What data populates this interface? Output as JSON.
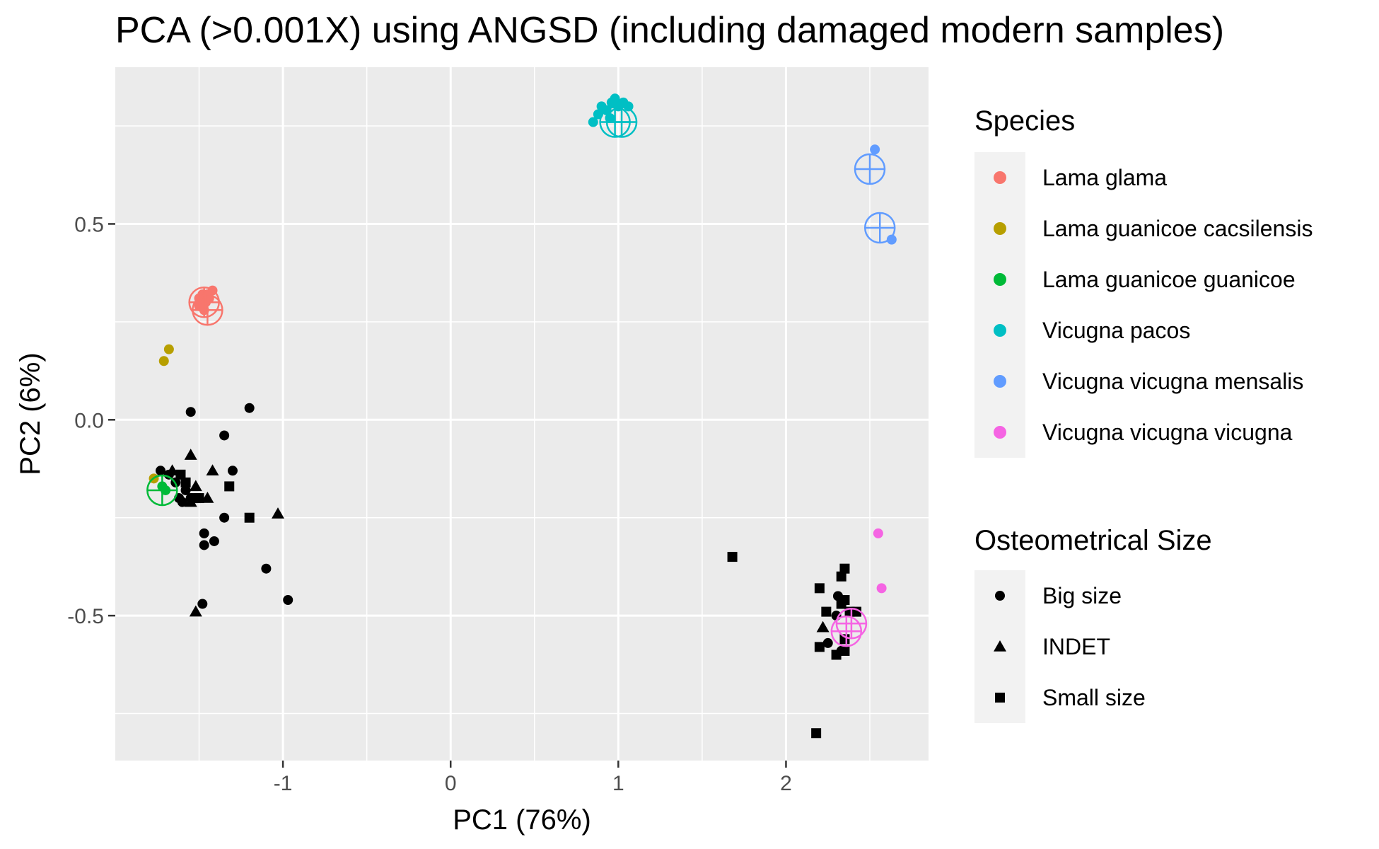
{
  "chart_data": {
    "type": "scatter",
    "title": "PCA (>0.001X) using ANGSD (including damaged modern samples)",
    "xlabel": "PC1 (76%)",
    "ylabel": "PC2 (6%)",
    "xlim": [
      -2.0,
      2.85
    ],
    "ylim": [
      -0.87,
      0.9
    ],
    "xticks": [
      -1,
      0,
      1,
      2
    ],
    "xtick_labels": [
      "-1",
      "0",
      "1",
      "2"
    ],
    "yticks": [
      -0.5,
      0.0,
      0.5
    ],
    "ytick_labels": [
      "-0.5",
      "0.0",
      "0.5"
    ],
    "grid": true,
    "background": "#ebebeb",
    "legends": [
      {
        "title": "Species",
        "type": "color",
        "items": [
          {
            "label": "Lama glama",
            "color": "#F8766D"
          },
          {
            "label": "Lama guanicoe cacsilensis",
            "color": "#B79F00"
          },
          {
            "label": "Lama guanicoe guanicoe",
            "color": "#00BA38"
          },
          {
            "label": "Vicugna pacos",
            "color": "#00BFC4"
          },
          {
            "label": "Vicugna vicugna mensalis",
            "color": "#619CFF"
          },
          {
            "label": "Vicugna vicugna vicugna",
            "color": "#F564E3"
          }
        ]
      },
      {
        "title": "Osteometrical Size",
        "type": "shape",
        "items": [
          {
            "label": "Big size",
            "shape": "circle"
          },
          {
            "label": "INDET",
            "shape": "triangle"
          },
          {
            "label": "Small size",
            "shape": "square"
          }
        ]
      }
    ],
    "modern_samples": [
      {
        "species": "Lama glama",
        "color": "#F8766D",
        "points": [
          [
            -1.5,
            0.31
          ],
          [
            -1.48,
            0.32
          ],
          [
            -1.45,
            0.32
          ],
          [
            -1.42,
            0.33
          ],
          [
            -1.5,
            0.29
          ],
          [
            -1.46,
            0.3
          ],
          [
            -1.44,
            0.31
          ],
          [
            -1.47,
            0.28
          ]
        ]
      },
      {
        "species": "Lama guanicoe cacsilensis",
        "color": "#B79F00",
        "points": [
          [
            -1.68,
            0.18
          ],
          [
            -1.71,
            0.15
          ],
          [
            -1.77,
            -0.15
          ]
        ]
      },
      {
        "species": "Lama guanicoe guanicoe",
        "color": "#00BA38",
        "points": [
          [
            -1.72,
            -0.17
          ],
          [
            -1.7,
            -0.18
          ]
        ]
      },
      {
        "species": "Vicugna pacos",
        "color": "#00BFC4",
        "points": [
          [
            0.85,
            0.76
          ],
          [
            0.88,
            0.78
          ],
          [
            0.9,
            0.8
          ],
          [
            0.93,
            0.79
          ],
          [
            0.96,
            0.81
          ],
          [
            0.98,
            0.82
          ],
          [
            1.0,
            0.8
          ],
          [
            1.03,
            0.81
          ],
          [
            1.06,
            0.8
          ],
          [
            0.95,
            0.77
          ]
        ]
      },
      {
        "species": "Vicugna vicugna mensalis",
        "color": "#619CFF",
        "points": [
          [
            2.53,
            0.69
          ],
          [
            2.63,
            0.46
          ]
        ]
      },
      {
        "species": "Vicugna vicugna vicugna",
        "color": "#F564E3",
        "points": [
          [
            2.55,
            -0.29
          ],
          [
            2.57,
            -0.43
          ]
        ]
      }
    ],
    "damaged_modern_samples": [
      {
        "species": "Lama glama",
        "color": "#F8766D",
        "points": [
          [
            -1.47,
            0.3
          ],
          [
            -1.45,
            0.28
          ]
        ]
      },
      {
        "species": "Lama guanicoe guanicoe",
        "color": "#00BA38",
        "points": [
          [
            -1.72,
            -0.18
          ]
        ]
      },
      {
        "species": "Vicugna pacos",
        "color": "#00BFC4",
        "points": [
          [
            0.98,
            0.76
          ],
          [
            1.02,
            0.76
          ]
        ]
      },
      {
        "species": "Vicugna vicugna mensalis",
        "color": "#619CFF",
        "points": [
          [
            2.5,
            0.64
          ],
          [
            2.56,
            0.49
          ]
        ]
      },
      {
        "species": "Vicugna vicugna vicugna",
        "color": "#F564E3",
        "points": [
          [
            2.36,
            -0.54
          ],
          [
            2.39,
            -0.52
          ]
        ]
      }
    ],
    "archaeological_samples": {
      "color": "#000000",
      "big_size": [
        [
          -1.73,
          -0.13
        ],
        [
          -1.68,
          -0.14
        ],
        [
          -1.64,
          -0.16
        ],
        [
          -1.62,
          -0.2
        ],
        [
          -1.6,
          -0.21
        ],
        [
          -1.58,
          -0.18
        ],
        [
          -1.55,
          -0.2
        ],
        [
          -1.5,
          -0.2
        ],
        [
          -1.55,
          0.02
        ],
        [
          -1.2,
          0.03
        ],
        [
          -1.35,
          -0.04
        ],
        [
          -1.3,
          -0.13
        ],
        [
          -1.35,
          -0.25
        ],
        [
          -1.47,
          -0.29
        ],
        [
          -1.41,
          -0.31
        ],
        [
          -1.47,
          -0.32
        ],
        [
          -1.1,
          -0.38
        ],
        [
          -0.97,
          -0.46
        ],
        [
          -1.48,
          -0.47
        ],
        [
          2.31,
          -0.45
        ],
        [
          2.3,
          -0.5
        ],
        [
          2.25,
          -0.57
        ],
        [
          2.33,
          -0.59
        ]
      ],
      "indet": [
        [
          -1.55,
          -0.09
        ],
        [
          -1.42,
          -0.13
        ],
        [
          -1.66,
          -0.13
        ],
        [
          -1.52,
          -0.17
        ],
        [
          -1.45,
          -0.2
        ],
        [
          -1.55,
          -0.21
        ],
        [
          -1.03,
          -0.24
        ],
        [
          -1.52,
          -0.49
        ],
        [
          2.22,
          -0.53
        ]
      ],
      "small_size": [
        [
          -1.61,
          -0.14
        ],
        [
          -1.58,
          -0.16
        ],
        [
          -1.52,
          -0.2
        ],
        [
          -1.5,
          -0.2
        ],
        [
          -1.32,
          -0.17
        ],
        [
          -1.2,
          -0.25
        ],
        [
          1.68,
          -0.35
        ],
        [
          2.35,
          -0.38
        ],
        [
          2.33,
          -0.4
        ],
        [
          2.2,
          -0.43
        ],
        [
          2.35,
          -0.46
        ],
        [
          2.33,
          -0.47
        ],
        [
          2.24,
          -0.49
        ],
        [
          2.38,
          -0.49
        ],
        [
          2.42,
          -0.49
        ],
        [
          2.35,
          -0.56
        ],
        [
          2.2,
          -0.58
        ],
        [
          2.3,
          -0.6
        ],
        [
          2.35,
          -0.59
        ],
        [
          2.18,
          -0.8
        ]
      ]
    }
  }
}
